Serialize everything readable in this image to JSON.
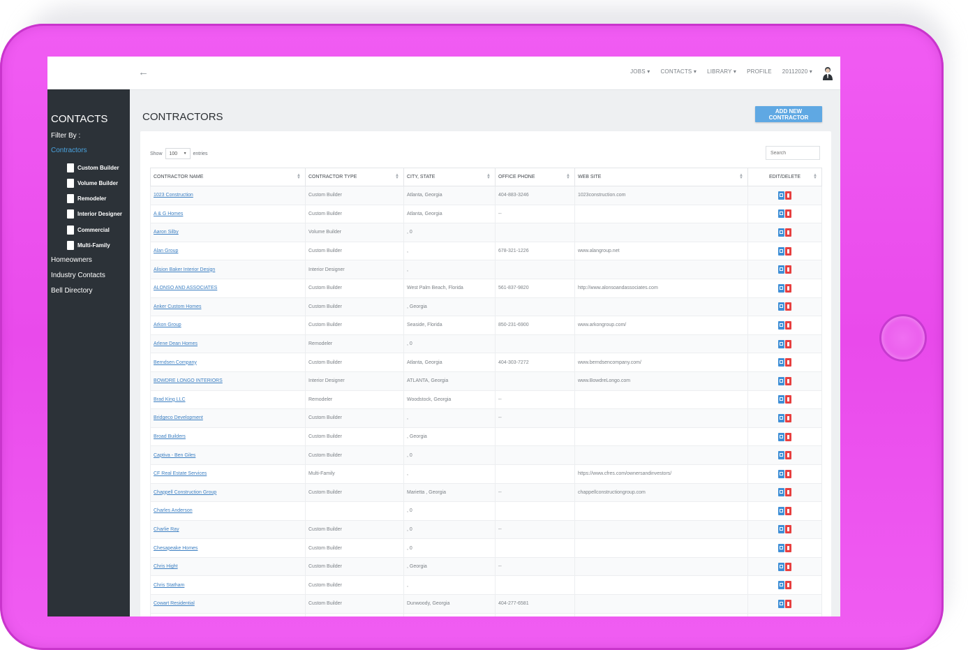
{
  "topbar": {
    "nav": [
      "JOBS",
      "CONTACTS",
      "LIBRARY",
      "PROFILE",
      "20112020"
    ]
  },
  "sidebar": {
    "title": "CONTACTS",
    "filter_label": "Filter By :",
    "active": "Contractors",
    "checks": [
      "Custom Builder",
      "Volume Builder",
      "Remodeler",
      "Interior Designer",
      "Commercial",
      "Multi-Family"
    ],
    "links": [
      "Homeowners",
      "Industry Contacts",
      "Bell Directory"
    ]
  },
  "main": {
    "title": "CONTRACTORS",
    "add_button": "ADD NEW CONTRACTOR",
    "show_label": "Show",
    "show_value": "100",
    "entries_label": "entries",
    "search_placeholder": "Search"
  },
  "table": {
    "headers": [
      "CONTRACTOR NAME",
      "CONTRACTOR TYPE",
      "CITY, STATE",
      "OFFICE PHONE",
      "WEB SITE",
      "EDIT/DELETE"
    ],
    "rows": [
      [
        "1023 Construction",
        "Custom Builder",
        "Atlanta, Georgia",
        "404-883-3246",
        "1023construction.com"
      ],
      [
        "A & G Homes",
        "Custom Builder",
        "Atlanta, Georgia",
        "--",
        ""
      ],
      [
        "Aaron Silby",
        "Volume Builder",
        ", 0",
        "",
        ""
      ],
      [
        "Alan Group",
        "Custom Builder",
        ",",
        "678-321-1226",
        "www.alangroup.net"
      ],
      [
        "Alision Baker Interior Design",
        "Interior Designer",
        ",",
        "",
        ""
      ],
      [
        "ALONSO AND ASSOCIATES",
        "Custom Builder",
        "West Palm Beach, Florida",
        "561-837-9820",
        "http://www.alonsoandassociates.com"
      ],
      [
        "Anker Custom Homes",
        "Custom Builder",
        ", Georgia",
        "",
        ""
      ],
      [
        "Arkon Group",
        "Custom Builder",
        "Seaside, Florida",
        "850-231-6900",
        "www.arkongroup.com/"
      ],
      [
        "Arlene Dean Homes",
        "Remodeler",
        ", 0",
        "",
        ""
      ],
      [
        "Berndsen Company",
        "Custom Builder",
        "Atlanta, Georgia",
        "404-303-7272",
        "www.berndsencompany.com/"
      ],
      [
        "BOWDRE LONGO INTERIORS",
        "Interior Designer",
        "ATLANTA, Georgia",
        "",
        "www.BowdreLongo.com"
      ],
      [
        "Brad King LLC",
        "Remodeler",
        "Woodstock, Georgia",
        "--",
        ""
      ],
      [
        "Bridgeco Development",
        "Custom Builder",
        ",",
        "--",
        ""
      ],
      [
        "Broad Builders",
        "Custom Builder",
        ", Georgia",
        "",
        ""
      ],
      [
        "Captiva - Ben Giles",
        "Custom Builder",
        ", 0",
        "",
        ""
      ],
      [
        "CF Real Estate Services",
        "Multi-Family",
        ",",
        "",
        "https://www.cfres.com/ownersandinvestors/"
      ],
      [
        "Chappell Construction Group",
        "Custom Builder",
        "Marietta , Georgia",
        "--",
        "chappellconstructiongroup.com"
      ],
      [
        "Charles Anderson",
        "",
        ", 0",
        "",
        ""
      ],
      [
        "Charlie Ray",
        "Custom Builder",
        ", 0",
        "--",
        ""
      ],
      [
        "Chesapeake Homes",
        "Custom Builder",
        ", 0",
        "",
        ""
      ],
      [
        "Chris Hight",
        "Custom Builder",
        ", Georgia",
        "--",
        ""
      ],
      [
        "Chris Statham",
        "Custom Builder",
        ",",
        "",
        ""
      ],
      [
        "Cowart Residential",
        "Custom Builder",
        "Dunwoody, Georgia",
        "404-277-6581",
        ""
      ],
      [
        "",
        "",
        "",
        "",
        ""
      ]
    ]
  }
}
